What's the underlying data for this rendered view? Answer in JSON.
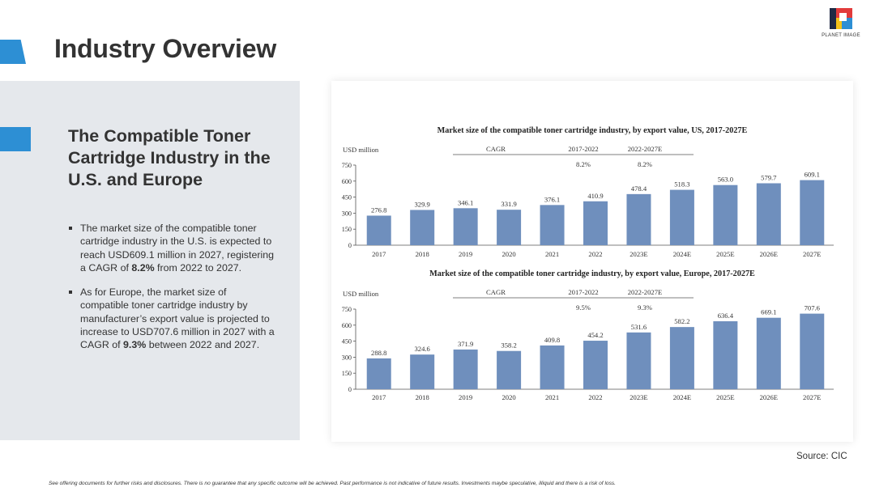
{
  "page": {
    "title": "Industry Overview",
    "source": "Source: CIC",
    "disclaimer": "See offering documents for further risks and disclosures. There is no guarantee that any specific outcome will be achieved. Past performance is not indicative of future results. Investments maybe speculative, illiquid and there is a risk of loss."
  },
  "logo": {
    "text": "PLANET IMAGE"
  },
  "left_panel": {
    "heading": "The Compatible Toner Cartridge Industry in the U.S. and Europe",
    "bullets": [
      {
        "pre": "The market size of the compatible toner cartridge industry in the U.S. is expected to reach USD609.1 million in 2027, registering a CAGR of ",
        "bold": "8.2%",
        "post": " from 2022 to 2027."
      },
      {
        "pre": "As for Europe, the market size of compatible toner cartridge industry by manufacturer’s export value is projected to increase to USD707.6 million in 2027 with a CAGR of ",
        "bold": "9.3%",
        "post": " between 2022 and 2027."
      }
    ]
  },
  "colors": {
    "bar": "#6f8fbd",
    "accent": "#2d8fd4",
    "panel": "#e5e8ec"
  },
  "chart_data": [
    {
      "type": "bar",
      "title": "Market size of the compatible toner cartridge industry, by export value, US, 2017-2027E",
      "ylabel": "USD million",
      "ylim": [
        0,
        750
      ],
      "yticks": [
        0,
        150,
        300,
        450,
        600,
        750
      ],
      "categories": [
        "2017",
        "2018",
        "2019",
        "2020",
        "2021",
        "2022",
        "2023E",
        "2024E",
        "2025E",
        "2026E",
        "2027E"
      ],
      "values": [
        276.8,
        329.9,
        346.1,
        331.9,
        376.1,
        410.9,
        478.4,
        518.3,
        563.0,
        579.7,
        609.1
      ],
      "value_labels": [
        "276.8",
        "329.9",
        "346.1",
        "331.9",
        "376.1",
        "410.9",
        "478.4",
        "518.3",
        "563.0",
        "579.7",
        "609.1"
      ],
      "cagr": {
        "label": "CAGR",
        "periods": [
          "2017-2022",
          "2022-2027E"
        ],
        "values": [
          "8.2%",
          "8.2%"
        ]
      }
    },
    {
      "type": "bar",
      "title": "Market size of the compatible toner cartridge industry, by export value, Europe, 2017-2027E",
      "ylabel": "USD million",
      "ylim": [
        0,
        750
      ],
      "yticks": [
        0,
        150,
        300,
        450,
        600,
        750
      ],
      "categories": [
        "2017",
        "2018",
        "2019",
        "2020",
        "2021",
        "2022",
        "2023E",
        "2024E",
        "2025E",
        "2026E",
        "2027E"
      ],
      "values": [
        288.8,
        324.6,
        371.9,
        358.2,
        409.8,
        454.2,
        531.6,
        582.2,
        636.4,
        669.1,
        707.6
      ],
      "value_labels": [
        "288.8",
        "324.6",
        "371.9",
        "358.2",
        "409.8",
        "454.2",
        "531.6",
        "582.2",
        "636.4",
        "669.1",
        "707.6"
      ],
      "cagr": {
        "label": "CAGR",
        "periods": [
          "2017-2022",
          "2022-2027E"
        ],
        "values": [
          "9.5%",
          "9.3%"
        ]
      }
    }
  ]
}
